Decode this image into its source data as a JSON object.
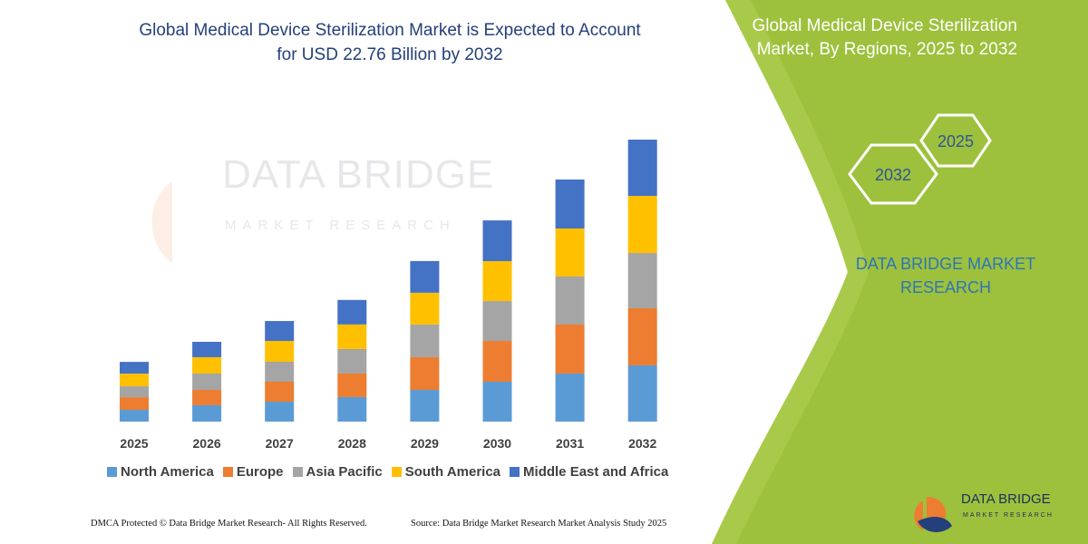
{
  "chart_data": {
    "type": "bar",
    "stacked": true,
    "title": "Global Medical Device Sterilization Market is Expected to Account for USD 22.76 Billion by 2032",
    "categories": [
      "2025",
      "2026",
      "2027",
      "2028",
      "2029",
      "2030",
      "2031",
      "2032"
    ],
    "series": [
      {
        "name": "North America",
        "color": "#5b9bd5",
        "values": [
          0.95,
          1.32,
          1.61,
          1.98,
          2.56,
          3.22,
          3.88,
          4.54
        ]
      },
      {
        "name": "Europe",
        "color": "#ed7d31",
        "values": [
          1.02,
          1.24,
          1.61,
          1.9,
          2.64,
          3.29,
          3.95,
          4.61
        ]
      },
      {
        "name": "Asia Pacific",
        "color": "#a5a5a5",
        "values": [
          0.88,
          1.32,
          1.61,
          1.98,
          2.64,
          3.22,
          3.88,
          4.46
        ]
      },
      {
        "name": "South America",
        "color": "#ffc000",
        "values": [
          1.02,
          1.32,
          1.68,
          1.98,
          2.56,
          3.22,
          3.88,
          4.61
        ]
      },
      {
        "name": "Middle East and Africa",
        "color": "#4472c4",
        "values": [
          0.95,
          1.24,
          1.61,
          1.98,
          2.56,
          3.29,
          3.95,
          4.54
        ]
      }
    ]
  },
  "panel": {
    "title": "Global Medical Device Sterilization Market, By Regions, 2025 to 2032",
    "hexagons": [
      "2032",
      "2025"
    ],
    "brand": "DATA BRIDGE MARKET RESEARCH"
  },
  "watermark": {
    "name": "DATA BRIDGE",
    "tagline": "MARKET RESEARCH"
  },
  "footer": {
    "left": "DMCA Protected © Data Bridge Market Research- All Rights Reserved.",
    "right": "Source: Data Bridge Market Research  Market Analysis Study 2025"
  },
  "logo": {
    "name": "DATA BRIDGE",
    "tagline": "MARKET RESEARCH"
  }
}
